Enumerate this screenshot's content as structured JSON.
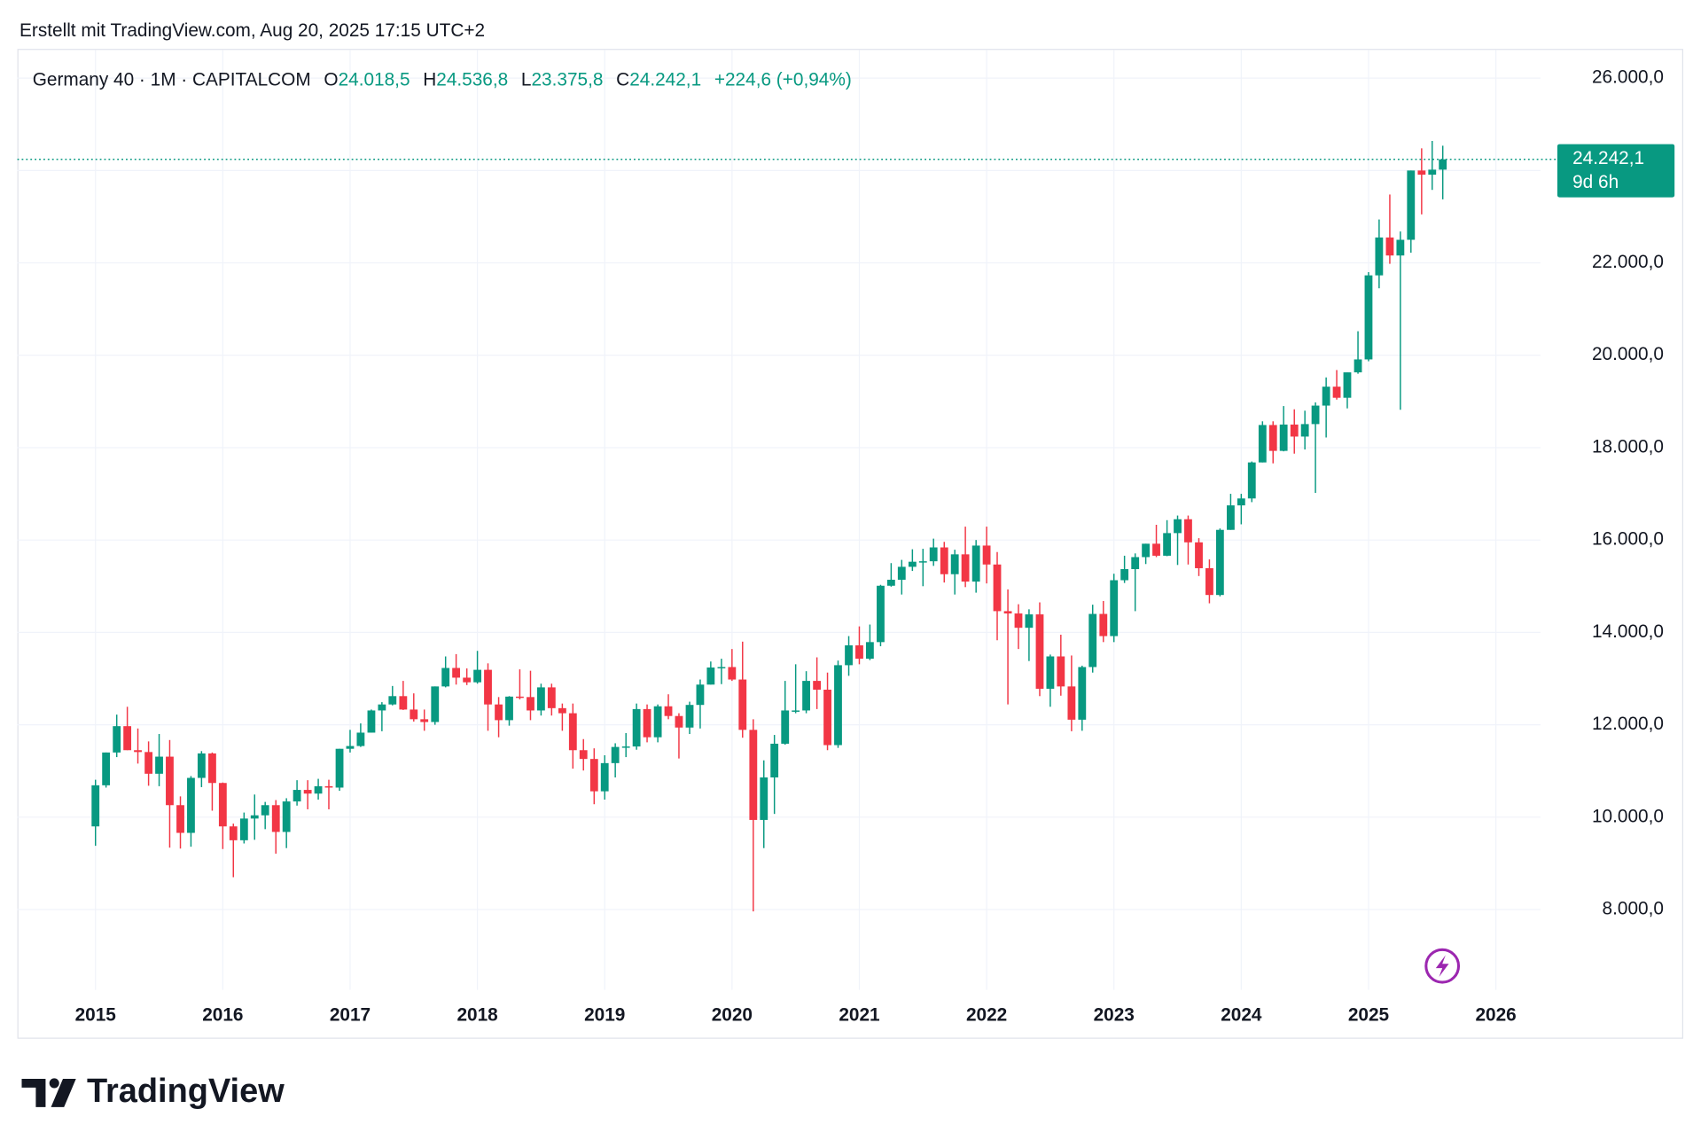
{
  "header": {
    "created": "Erstellt mit TradingView.com, Aug 20, 2025 17:15 UTC+2"
  },
  "logo": {
    "text": "TradingView"
  },
  "chart_data": {
    "type": "candlestick",
    "legend": {
      "symbol": "Germany 40 · 1M · CAPITALCOM",
      "o_key": "O",
      "o": "24.018,5",
      "h_key": "H",
      "h": "24.536,8",
      "l_key": "L",
      "l": "23.375,8",
      "c_key": "C",
      "c": "24.242,1",
      "change": "+224,6 (+0,94%)"
    },
    "price_label": "24.242,1",
    "countdown": "9d 6h",
    "up_color": "#089981",
    "down_color": "#f23645",
    "grid": true,
    "xlim": [
      2014.4,
      2026.35
    ],
    "xticks": [
      2015,
      2016,
      2017,
      2018,
      2019,
      2020,
      2021,
      2022,
      2023,
      2024,
      2025,
      2026
    ],
    "ylim": [
      6000,
      27000
    ],
    "yticks": [
      {
        "value": 8000,
        "label": "8.000,0"
      },
      {
        "value": 10000,
        "label": "10.000,0"
      },
      {
        "value": 12000,
        "label": "12.000,0"
      },
      {
        "value": 14000,
        "label": "14.000,0"
      },
      {
        "value": 16000,
        "label": "16.000,0"
      },
      {
        "value": 18000,
        "label": "18.000,0"
      },
      {
        "value": 20000,
        "label": "20.000,0"
      },
      {
        "value": 22000,
        "label": "22.000,0"
      },
      {
        "value": 24000,
        "label": "24.000,0"
      },
      {
        "value": 26000,
        "label": "26.000,0"
      }
    ],
    "x": [
      2015,
      2015.083,
      2015.167,
      2015.25,
      2015.333,
      2015.417,
      2015.5,
      2015.583,
      2015.667,
      2015.75,
      2015.833,
      2015.917,
      2016,
      2016.083,
      2016.167,
      2016.25,
      2016.333,
      2016.417,
      2016.5,
      2016.583,
      2016.667,
      2016.75,
      2016.833,
      2016.917,
      2017,
      2017.083,
      2017.167,
      2017.25,
      2017.333,
      2017.417,
      2017.5,
      2017.583,
      2017.667,
      2017.75,
      2017.833,
      2017.917,
      2018,
      2018.083,
      2018.167,
      2018.25,
      2018.333,
      2018.417,
      2018.5,
      2018.583,
      2018.667,
      2018.75,
      2018.833,
      2018.917,
      2019,
      2019.083,
      2019.167,
      2019.25,
      2019.333,
      2019.417,
      2019.5,
      2019.583,
      2019.667,
      2019.75,
      2019.833,
      2019.917,
      2020,
      2020.083,
      2020.167,
      2020.25,
      2020.333,
      2020.417,
      2020.5,
      2020.583,
      2020.667,
      2020.75,
      2020.833,
      2020.917,
      2021,
      2021.083,
      2021.167,
      2021.25,
      2021.333,
      2021.417,
      2021.5,
      2021.583,
      2021.667,
      2021.75,
      2021.833,
      2021.917,
      2022,
      2022.083,
      2022.167,
      2022.25,
      2022.333,
      2022.417,
      2022.5,
      2022.583,
      2022.667,
      2022.75,
      2022.833,
      2022.917,
      2023,
      2023.083,
      2023.167,
      2023.25,
      2023.333,
      2023.417,
      2023.5,
      2023.583,
      2023.667,
      2023.75,
      2023.833,
      2023.917,
      2024,
      2024.083,
      2024.167,
      2024.25,
      2024.333,
      2024.417,
      2024.5,
      2024.583,
      2024.667,
      2024.75,
      2024.833,
      2024.917,
      2025,
      2025.083,
      2025.167,
      2025.25,
      2025.333,
      2025.417,
      2025.5,
      2025.583
    ],
    "open": [
      9800,
      10690,
      11400,
      11970,
      11450,
      11410,
      10940,
      11310,
      10260,
      9660,
      10850,
      11380,
      10740,
      9800,
      9500,
      9970,
      10040,
      10260,
      9680,
      10340,
      10590,
      10510,
      10670,
      10640,
      11480,
      11540,
      11830,
      12310,
      12440,
      12620,
      12330,
      12120,
      12060,
      12830,
      13230,
      13020,
      12920,
      13190,
      12440,
      12100,
      12610,
      12600,
      12310,
      12810,
      12360,
      12250,
      11450,
      11260,
      10560,
      11170,
      11520,
      11530,
      12340,
      11730,
      12400,
      12190,
      11940,
      12430,
      12870,
      13240,
      13250,
      12980,
      11890,
      9940,
      10860,
      11590,
      12310,
      12310,
      12950,
      12760,
      11560,
      13290,
      13720,
      13430,
      13790,
      15010,
      15140,
      15420,
      15530,
      15540,
      15840,
      15260,
      15690,
      15100,
      15880,
      15470,
      14460,
      14410,
      14100,
      14390,
      12780,
      13480,
      12830,
      12110,
      13250,
      14400,
      13920,
      15130,
      15370,
      15630,
      15920,
      15660,
      16150,
      16450,
      15950,
      15390,
      14810,
      16220,
      16750,
      16900,
      17680,
      18490,
      17930,
      18500,
      18240,
      18510,
      18910,
      19320,
      19080,
      19630,
      19910,
      21730,
      22550,
      22160,
      22500,
      24000,
      23910,
      24018.5
    ],
    "high": [
      10810,
      11400,
      12220,
      12390,
      11920,
      11640,
      11800,
      11670,
      10450,
      10890,
      11430,
      11400,
      10750,
      9860,
      10100,
      10490,
      10330,
      10370,
      10410,
      10800,
      10800,
      10830,
      10810,
      11480,
      11890,
      12030,
      12330,
      12490,
      12840,
      12950,
      12680,
      12330,
      12830,
      13480,
      13530,
      13220,
      13600,
      13330,
      12600,
      12620,
      13200,
      13170,
      12890,
      12890,
      12460,
      12460,
      11690,
      11490,
      11340,
      11600,
      11820,
      12460,
      12440,
      12440,
      12660,
      12250,
      12500,
      12980,
      13370,
      13430,
      13640,
      13800,
      12120,
      11230,
      11780,
      12950,
      13310,
      13160,
      13460,
      13130,
      13390,
      13920,
      14130,
      14170,
      15030,
      15500,
      15570,
      15800,
      15810,
      16030,
      15960,
      15790,
      16290,
      16000,
      16290,
      15740,
      14930,
      14610,
      14500,
      14650,
      13520,
      13950,
      13500,
      13280,
      14600,
      14680,
      15270,
      15660,
      15710,
      15920,
      16330,
      16430,
      16530,
      16530,
      16040,
      15580,
      16250,
      17000,
      17000,
      17700,
      18570,
      18570,
      18900,
      18830,
      18800,
      18980,
      19520,
      19680,
      19630,
      20520,
      21800,
      22940,
      23480,
      22680,
      24000,
      24480,
      24640,
      24536.8
    ],
    "low": [
      9380,
      10640,
      11300,
      11450,
      11160,
      10680,
      10670,
      9340,
      9320,
      9360,
      10650,
      10140,
      9310,
      8700,
      9430,
      9510,
      9740,
      9210,
      9330,
      10250,
      10170,
      10380,
      10170,
      10570,
      11400,
      11520,
      11830,
      11860,
      12420,
      12320,
      12070,
      11870,
      12000,
      12810,
      12870,
      12860,
      12890,
      11870,
      11730,
      11980,
      12550,
      12100,
      12200,
      12200,
      11870,
      11050,
      11010,
      10280,
      10380,
      10860,
      11300,
      11460,
      11620,
      11620,
      12120,
      11270,
      11800,
      11920,
      12870,
      12880,
      12950,
      11720,
      7960,
      9330,
      10070,
      11570,
      12250,
      12250,
      12340,
      11450,
      11500,
      13060,
      13310,
      13400,
      13700,
      14990,
      14820,
      15330,
      15000,
      15440,
      15080,
      14820,
      14980,
      14860,
      15060,
      13830,
      12440,
      13640,
      13380,
      12620,
      12390,
      12630,
      11860,
      11870,
      13130,
      13790,
      13790,
      15070,
      14460,
      15480,
      15630,
      15650,
      15460,
      15470,
      15220,
      14630,
      14780,
      16220,
      16340,
      16820,
      17680,
      17660,
      17920,
      17870,
      17960,
      17020,
      18220,
      19040,
      18850,
      19600,
      19870,
      21450,
      21980,
      18820,
      22220,
      23050,
      23580,
      23375.8
    ],
    "close": [
      10690,
      11400,
      11970,
      11450,
      11410,
      10940,
      11310,
      10260,
      9660,
      10850,
      11380,
      10740,
      9800,
      9500,
      9970,
      10040,
      10260,
      9680,
      10340,
      10590,
      10510,
      10670,
      10640,
      11480,
      11540,
      11830,
      12310,
      12440,
      12620,
      12330,
      12120,
      12060,
      12830,
      13230,
      13020,
      12920,
      13190,
      12440,
      12100,
      12610,
      12600,
      12310,
      12810,
      12360,
      12250,
      11450,
      11260,
      10560,
      11170,
      11520,
      11530,
      12340,
      11730,
      12400,
      12190,
      11940,
      12430,
      12870,
      13240,
      13250,
      12980,
      11890,
      9940,
      10860,
      11590,
      12310,
      12310,
      12950,
      12760,
      11560,
      13290,
      13720,
      13430,
      13790,
      15010,
      15140,
      15420,
      15530,
      15540,
      15840,
      15260,
      15690,
      15100,
      15880,
      15470,
      14460,
      14410,
      14100,
      14390,
      12780,
      13480,
      12830,
      12110,
      13250,
      14400,
      13920,
      15130,
      15370,
      15630,
      15920,
      15660,
      16150,
      16450,
      15950,
      15390,
      14810,
      16220,
      16750,
      16900,
      17680,
      18490,
      17930,
      18500,
      18240,
      18510,
      18910,
      19320,
      19080,
      19630,
      19910,
      21730,
      22550,
      22160,
      22500,
      24000,
      23910,
      24018.5,
      24242.1
    ]
  }
}
